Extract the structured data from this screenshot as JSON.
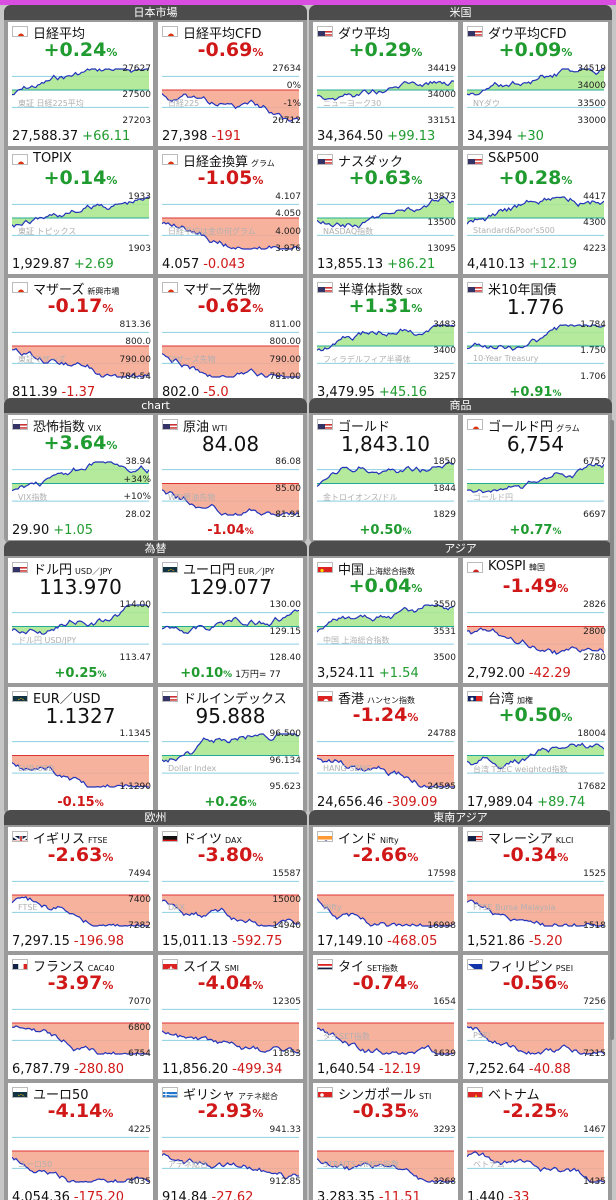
{
  "panels": [
    {
      "title": "日本市場",
      "tiles": [
        {
          "flag": "jp",
          "name": "日経平均",
          "pct": "+0.24",
          "dir": "up",
          "price": "27,588.37",
          "change": "+66.11",
          "axis": [
            "27627",
            "27500",
            "27203"
          ],
          "wm": "東証 日経225平均"
        },
        {
          "flag": "jp",
          "name": "日経平均CFD",
          "pct": "-0.69",
          "dir": "dn",
          "price": "27,398",
          "change": "-191",
          "axis": [
            "27634",
            "0%",
            "-1%",
            "26712"
          ],
          "wm": "日経225"
        },
        {
          "flag": "jp",
          "name": "TOPIX",
          "pct": "+0.14",
          "dir": "up",
          "price": "1,929.87",
          "change": "+2.69",
          "axis": [
            "1933",
            "1903"
          ],
          "wm": "東証 トピックス"
        },
        {
          "flag": "jp",
          "name": "日経金換算",
          "sub": "グラム",
          "pct": "-1.05",
          "dir": "dn",
          "price": "4.057",
          "change": "-0.043",
          "axis": [
            "4.107",
            "4.050",
            "4.000",
            "3.976"
          ],
          "wm": "日経平均は金の何グラム"
        },
        {
          "flag": "jp",
          "name": "マザーズ",
          "sub": "新興市場",
          "pct": "-0.17",
          "dir": "dn",
          "price": "811.39",
          "change": "-1.37",
          "axis": [
            "813.36",
            "800.0",
            "790.00",
            "784.54"
          ],
          "wm": "東証マザーズ"
        },
        {
          "flag": "jp",
          "name": "マザーズ先物",
          "pct": "-0.62",
          "dir": "dn",
          "price": "802.0",
          "change": "-5.0",
          "axis": [
            "811.00",
            "800.00",
            "790.00",
            "781.00"
          ],
          "wm": "マザーズ先物"
        }
      ]
    },
    {
      "title": "米国",
      "tiles": [
        {
          "flag": "us",
          "name": "ダウ平均",
          "pct": "+0.29",
          "dir": "up",
          "price": "34,364.50",
          "change": "+99.13",
          "axis": [
            "34419",
            "34000",
            "33151"
          ],
          "wm": "ニューヨーク30"
        },
        {
          "flag": "us",
          "name": "ダウ平均CFD",
          "pct": "+0.09",
          "dir": "up",
          "price": "34,394",
          "change": "+30",
          "axis": [
            "34519",
            "34000",
            "33500",
            "33000"
          ],
          "wm": "NYダウ"
        },
        {
          "flag": "us",
          "name": "ナスダック",
          "pct": "+0.63",
          "dir": "up",
          "price": "13,855.13",
          "change": "+86.21",
          "axis": [
            "13873",
            "13500",
            "13095"
          ],
          "wm": "NASDAQ指数"
        },
        {
          "flag": "us",
          "name": "S&P500",
          "pct": "+0.28",
          "dir": "up",
          "price": "4,410.13",
          "change": "+12.19",
          "axis": [
            "4417",
            "4300",
            "4223"
          ],
          "wm": "Standard&Poor's500"
        },
        {
          "flag": "us",
          "name": "半導体指数",
          "sub": "SOX",
          "pct": "+1.31",
          "dir": "up",
          "price": "3,479.95",
          "change": "+45.16",
          "axis": [
            "3483",
            "3400",
            "3257"
          ],
          "wm": "フィラデルフィア半導体"
        },
        {
          "flag": "us",
          "name": "米10年国債",
          "big": "1.776",
          "dir": "up",
          "bottom": "+0.91",
          "axis": [
            "1.784",
            "1.750",
            "1.706"
          ],
          "wm": "10-Year Treasury"
        }
      ]
    },
    {
      "title": "chart",
      "tiles": [
        {
          "flag": "us",
          "name": "恐怖指数",
          "sub": "VIX",
          "pct": "+3.64",
          "dir": "up",
          "price": "29.90",
          "change": "+1.05",
          "axis": [
            "38.94",
            "+34%",
            "+10%",
            "28.02"
          ],
          "wm": "VIX指数"
        },
        {
          "flag": "us",
          "name": "原油",
          "sub": "WTI",
          "big": "84.08",
          "dir": "dn",
          "bottom": "-1.04",
          "axis": [
            "86.08",
            "85.00",
            "81.91"
          ],
          "wm": "WTI原油先物"
        }
      ]
    },
    {
      "title": "商品",
      "tiles": [
        {
          "flag": "us",
          "name": "ゴールド",
          "big": "1,843.10",
          "dir": "up",
          "bottom": "+0.50",
          "axis": [
            "1850",
            "1844",
            "1829"
          ],
          "wm": "金トロイオンス/ドル"
        },
        {
          "flag": "jp",
          "name": "ゴールド円",
          "sub": "グラム",
          "big": "6,754",
          "dir": "up",
          "bottom": "+0.77",
          "axis": [
            "6757",
            "6697"
          ],
          "wm": "ゴールド円"
        }
      ]
    },
    {
      "title": "為替",
      "tiles": [
        {
          "flag": "us",
          "name": "ドル円",
          "sub": "USD／JPY",
          "big": "113.970",
          "dir": "up",
          "bottom": "+0.25",
          "axis": [
            "114.00",
            "113.47"
          ],
          "wm": "ドル円 USD/JPY"
        },
        {
          "flag": "eu",
          "name": "ユーロ円",
          "sub": "EUR／JPY",
          "big": "129.077",
          "dir": "up",
          "bottom": "+0.10",
          "extra": "1万円= 77",
          "axis": [
            "130.00",
            "129.15",
            "128.40"
          ],
          "wm": ""
        },
        {
          "flag": "eu",
          "name": "EUR／USD",
          "big": "1.1327",
          "dir": "dn",
          "bottom": "-0.15",
          "axis": [
            "1.1345",
            "1.1290"
          ],
          "wm": "EUR/USD"
        },
        {
          "flag": "us",
          "name": "ドルインデックス",
          "big": "95.888",
          "dir": "up",
          "bottom": "+0.26",
          "axis": [
            "96.500",
            "96.134",
            "95.623"
          ],
          "wm": "Dollar Index"
        }
      ]
    },
    {
      "title": "アジア",
      "tiles": [
        {
          "flag": "cn",
          "name": "中国",
          "sub": "上海総合指数",
          "pct": "+0.04",
          "dir": "up",
          "price": "3,524.11",
          "change": "+1.54",
          "axis": [
            "3550",
            "3531",
            "3500"
          ],
          "wm": "中国 上海総合指数"
        },
        {
          "flag": "kr",
          "name": "KOSPI",
          "sub": "韓国",
          "pct": "-1.49",
          "dir": "dn",
          "price": "2,792.00",
          "change": "-42.29",
          "axis": [
            "2826",
            "2800",
            "2780"
          ],
          "wm": ""
        },
        {
          "flag": "hk",
          "name": "香港",
          "sub": "ハンセン指数",
          "pct": "-1.24",
          "dir": "dn",
          "price": "24,656.46",
          "change": "-309.09",
          "axis": [
            "24788",
            "24595"
          ],
          "wm": "HANG SENG"
        },
        {
          "flag": "tw",
          "name": "台湾",
          "sub": "加権",
          "pct": "+0.50",
          "dir": "up",
          "price": "17,989.04",
          "change": "+89.74",
          "axis": [
            "18004",
            "17682"
          ],
          "wm": "台湾 TSEC weighted指数"
        }
      ]
    },
    {
      "title": "欧州",
      "tiles": [
        {
          "flag": "uk",
          "name": "イギリス",
          "sub": "FTSE",
          "pct": "-2.63",
          "dir": "dn",
          "price": "7,297.15",
          "change": "-196.98",
          "axis": [
            "7494",
            "7400",
            "7282"
          ],
          "wm": "FTSE"
        },
        {
          "flag": "de",
          "name": "ドイツ",
          "sub": "DAX",
          "pct": "-3.80",
          "dir": "dn",
          "price": "15,011.13",
          "change": "-592.75",
          "axis": [
            "15587",
            "15000",
            "14940"
          ],
          "wm": "DAX"
        },
        {
          "flag": "fr",
          "name": "フランス",
          "sub": "CAC40",
          "pct": "-3.97",
          "dir": "dn",
          "price": "6,787.79",
          "change": "-280.80",
          "axis": [
            "7070",
            "6800",
            "6754"
          ],
          "wm": ""
        },
        {
          "flag": "ch",
          "name": "スイス",
          "sub": "SMI",
          "pct": "-4.04",
          "dir": "dn",
          "price": "11,856.20",
          "change": "-499.34",
          "axis": [
            "12305",
            "11853"
          ],
          "wm": ""
        },
        {
          "flag": "eu",
          "name": "ユーロ50",
          "pct": "-4.14",
          "dir": "dn",
          "price": "4,054.36",
          "change": "-175.20",
          "axis": [
            "4225",
            "4035"
          ],
          "wm": "ユーロ50"
        },
        {
          "flag": "gr",
          "name": "ギリシャ",
          "sub": "アテネ総合",
          "pct": "-2.93",
          "dir": "dn",
          "price": "914.84",
          "change": "-27.62",
          "axis": [
            "941.33",
            "912.85"
          ],
          "wm": "アテネ総合"
        }
      ]
    },
    {
      "title": "東南アジア",
      "tiles": [
        {
          "flag": "in",
          "name": "インド",
          "sub": "Nifty",
          "pct": "-2.66",
          "dir": "dn",
          "price": "17,149.10",
          "change": "-468.05",
          "axis": [
            "17598",
            "16998"
          ],
          "wm": "Nifty"
        },
        {
          "flag": "my",
          "name": "マレーシア",
          "sub": "KLCI",
          "pct": "-0.34",
          "dir": "dn",
          "price": "1,521.86",
          "change": "-5.20",
          "axis": [
            "1525",
            "1518"
          ],
          "wm": "FTSE Bursa Malaysia"
        },
        {
          "flag": "th",
          "name": "タイ",
          "sub": "SET指数",
          "pct": "-0.74",
          "dir": "dn",
          "price": "1,640.54",
          "change": "-12.19",
          "axis": [
            "1654",
            "1639"
          ],
          "wm": "タイSET指数"
        },
        {
          "flag": "ph",
          "name": "フィリピン",
          "sub": "PSEI",
          "pct": "-0.56",
          "dir": "dn",
          "price": "7,252.64",
          "change": "-40.88",
          "axis": [
            "7256",
            "7215"
          ],
          "wm": "PSEi"
        },
        {
          "flag": "sg",
          "name": "シンガポール",
          "sub": "STI",
          "pct": "-0.35",
          "dir": "dn",
          "price": "3,283.35",
          "change": "-11.51",
          "axis": [
            "3293",
            "3268"
          ],
          "wm": "STRAITS TIMES指数"
        },
        {
          "flag": "vn",
          "name": "ベトナム",
          "pct": "-2.25",
          "dir": "dn",
          "price": "1,440",
          "change": "-33",
          "axis": [
            "1467",
            "1435"
          ],
          "wm": "ベトナム"
        }
      ]
    }
  ]
}
